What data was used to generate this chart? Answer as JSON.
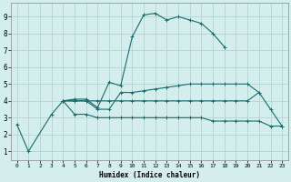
{
  "xlabel": "Humidex (Indice chaleur)",
  "xlim": [
    -0.5,
    23.5
  ],
  "ylim": [
    0.5,
    9.8
  ],
  "xticks": [
    0,
    1,
    2,
    3,
    4,
    5,
    6,
    7,
    8,
    9,
    10,
    11,
    12,
    13,
    14,
    15,
    16,
    17,
    18,
    19,
    20,
    21,
    22,
    23
  ],
  "yticks": [
    1,
    2,
    3,
    4,
    5,
    6,
    7,
    8,
    9
  ],
  "background_color": "#d4eeed",
  "grid_color": "#b8d8d5",
  "line_color": "#1a6b6b",
  "lines": [
    {
      "x": [
        0,
        1,
        3,
        4,
        5,
        6,
        7,
        8,
        9,
        10,
        11,
        12,
        13,
        14,
        15,
        16,
        17,
        18
      ],
      "y": [
        2.6,
        1.0,
        3.2,
        4.0,
        4.1,
        4.1,
        3.6,
        5.1,
        4.9,
        7.8,
        9.1,
        9.2,
        8.8,
        9.0,
        8.8,
        8.6,
        8.0,
        7.2
      ]
    },
    {
      "x": [
        4,
        5,
        6,
        7,
        8,
        9,
        10,
        11,
        12,
        13,
        14,
        15,
        16,
        17,
        18,
        19,
        20,
        21
      ],
      "y": [
        4.0,
        4.0,
        4.0,
        3.5,
        3.5,
        4.5,
        4.5,
        4.6,
        4.7,
        4.8,
        4.9,
        5.0,
        5.0,
        5.0,
        5.0,
        5.0,
        5.0,
        4.5
      ]
    },
    {
      "x": [
        4,
        5,
        6,
        7,
        8,
        9,
        10,
        11,
        12,
        13,
        14,
        15,
        16,
        17,
        18,
        19,
        20,
        21,
        22,
        23
      ],
      "y": [
        4.0,
        3.2,
        3.2,
        3.0,
        3.0,
        3.0,
        3.0,
        3.0,
        3.0,
        3.0,
        3.0,
        3.0,
        3.0,
        2.8,
        2.8,
        2.8,
        2.8,
        2.8,
        2.5,
        2.5
      ]
    },
    {
      "x": [
        4,
        5,
        6,
        7,
        8,
        9,
        10,
        11,
        12,
        13,
        14,
        15,
        16,
        17,
        18,
        19,
        20,
        21,
        22,
        23
      ],
      "y": [
        4.0,
        4.0,
        4.0,
        4.0,
        4.0,
        4.0,
        4.0,
        4.0,
        4.0,
        4.0,
        4.0,
        4.0,
        4.0,
        4.0,
        4.0,
        4.0,
        4.0,
        4.5,
        3.5,
        2.5
      ]
    }
  ]
}
